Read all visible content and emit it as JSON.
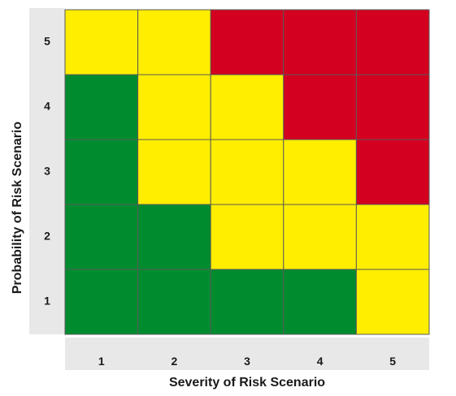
{
  "chart_data": {
    "type": "heatmap",
    "title": "",
    "xlabel": "Severity of Risk Scenario",
    "ylabel": "Probability of Risk Scenario",
    "x_ticks": [
      "1",
      "2",
      "3",
      "4",
      "5"
    ],
    "y_ticks": [
      "5",
      "4",
      "3",
      "2",
      "1"
    ],
    "legend": "none",
    "colors": {
      "green": "#008c2e",
      "yellow": "#ffee00",
      "red": "#d40020",
      "grid": "#5a5a5a",
      "axis_band": "#e9e8e8"
    },
    "cells": [
      [
        "yellow",
        "yellow",
        "red",
        "red",
        "red"
      ],
      [
        "green",
        "yellow",
        "yellow",
        "red",
        "red"
      ],
      [
        "green",
        "yellow",
        "yellow",
        "yellow",
        "red"
      ],
      [
        "green",
        "green",
        "yellow",
        "yellow",
        "yellow"
      ],
      [
        "green",
        "green",
        "green",
        "green",
        "yellow"
      ]
    ]
  }
}
